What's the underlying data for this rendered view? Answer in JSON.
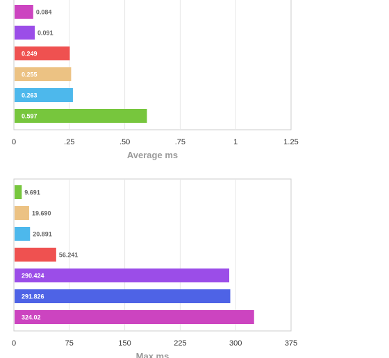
{
  "chart_data": [
    {
      "type": "bar",
      "orientation": "horizontal",
      "xlabel": "Average ms",
      "xlim": [
        0,
        1.25
      ],
      "ticks": [
        0,
        0.25,
        0.5,
        0.75,
        1,
        1.25
      ],
      "tick_labels": [
        "0",
        ".25",
        ".50",
        ".75",
        "1",
        "1.25"
      ],
      "grid": "vertical",
      "bars": [
        {
          "value": 0.084,
          "label": "0.084",
          "color": "#cc44c0"
        },
        {
          "value": 0.091,
          "label": "0.091",
          "color": "#9b4de8"
        },
        {
          "value": 0.249,
          "label": "0.249",
          "color": "#ef5150"
        },
        {
          "value": 0.255,
          "label": "0.255",
          "color": "#ecc283"
        },
        {
          "value": 0.263,
          "label": "0.263",
          "color": "#4db8ec"
        },
        {
          "value": 0.597,
          "label": "0.597",
          "color": "#77c63d"
        }
      ]
    },
    {
      "type": "bar",
      "orientation": "horizontal",
      "xlabel": "Max ms",
      "xlim": [
        0,
        375
      ],
      "ticks": [
        0,
        75,
        150,
        225,
        300,
        375
      ],
      "tick_labels": [
        "0",
        "75",
        "150",
        "225",
        "300",
        "375"
      ],
      "grid": "vertical",
      "bars": [
        {
          "value": 9.691,
          "label": "9.691",
          "color": "#77c63d"
        },
        {
          "value": 19.69,
          "label": "19.690",
          "color": "#ecc283"
        },
        {
          "value": 20.891,
          "label": "20.891",
          "color": "#4db8ec"
        },
        {
          "value": 56.241,
          "label": "56.241",
          "color": "#ef5150"
        },
        {
          "value": 290.424,
          "label": "290.424",
          "color": "#9b4de8"
        },
        {
          "value": 291.826,
          "label": "291.826",
          "color": "#4e63e6"
        },
        {
          "value": 324.02,
          "label": "324.02",
          "color": "#cc44c0"
        }
      ]
    }
  ]
}
